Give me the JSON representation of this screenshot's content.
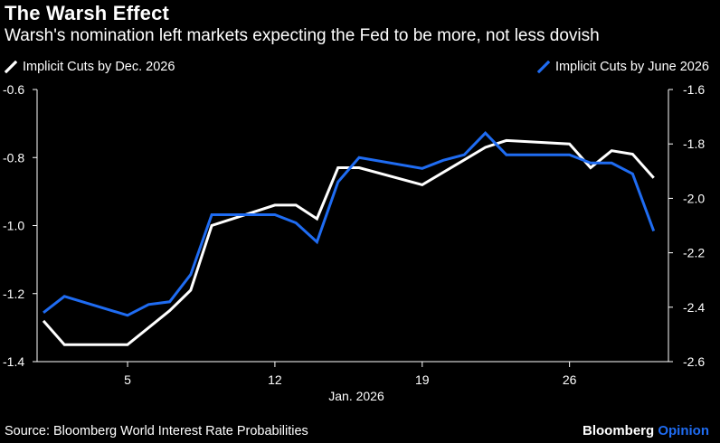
{
  "title": "The Warsh Effect",
  "subtitle": "Warsh's nomination left markets expecting the Fed to be more, not less dovish",
  "source": "Source: Bloomberg World Interest Rate Probabilities",
  "brand": {
    "name": "Bloomberg",
    "suffix": "Opinion",
    "suffix_color": "#1f6cf2"
  },
  "chart_data": {
    "type": "line",
    "xlabel": "Jan. 2026",
    "x_ticks": [
      5,
      12,
      19,
      26
    ],
    "x_tick_labels": [
      "5",
      "12",
      "19",
      "26"
    ],
    "xlim": [
      0.7,
      30.7
    ],
    "left_axis": {
      "ylim": [
        -1.4,
        -0.6
      ],
      "ticks": [
        -0.6,
        -0.8,
        -1.0,
        -1.2,
        -1.4
      ],
      "tick_labels": [
        "-0.6",
        "-0.8",
        "-1.0",
        "-1.2",
        "-1.4"
      ]
    },
    "right_axis": {
      "ylim": [
        -2.6,
        -1.6
      ],
      "ticks": [
        -1.6,
        -1.8,
        -2.0,
        -2.2,
        -2.4,
        -2.6
      ],
      "tick_labels": [
        "-1.6",
        "-1.8",
        "-2.0",
        "-2.2",
        "-2.4",
        "-2.6"
      ]
    },
    "series": [
      {
        "name": "Implicit Cuts by Dec. 2026",
        "axis": "left",
        "color": "#ffffff",
        "x": [
          1,
          2,
          5,
          6,
          7,
          8,
          9,
          12,
          13,
          14,
          15,
          16,
          19,
          22,
          23,
          26,
          27,
          28,
          29,
          30
        ],
        "values": [
          -1.28,
          -1.35,
          -1.35,
          -1.3,
          -1.25,
          -1.19,
          -1.0,
          -0.94,
          -0.94,
          -0.98,
          -0.83,
          -0.83,
          -0.88,
          -0.77,
          -0.75,
          -0.76,
          -0.83,
          -0.78,
          -0.79,
          -0.86
        ]
      },
      {
        "name": "Implicit Cuts by June 2026",
        "axis": "right",
        "color": "#1f6cf2",
        "x": [
          1,
          2,
          5,
          6,
          7,
          8,
          9,
          12,
          13,
          14,
          15,
          16,
          19,
          20,
          21,
          22,
          23,
          26,
          27,
          28,
          29,
          30
        ],
        "values": [
          -2.42,
          -2.36,
          -2.43,
          -2.39,
          -2.38,
          -2.28,
          -2.06,
          -2.06,
          -2.09,
          -2.16,
          -1.94,
          -1.85,
          -1.89,
          -1.86,
          -1.84,
          -1.76,
          -1.84,
          -1.84,
          -1.87,
          -1.87,
          -1.91,
          -2.12
        ]
      }
    ]
  }
}
